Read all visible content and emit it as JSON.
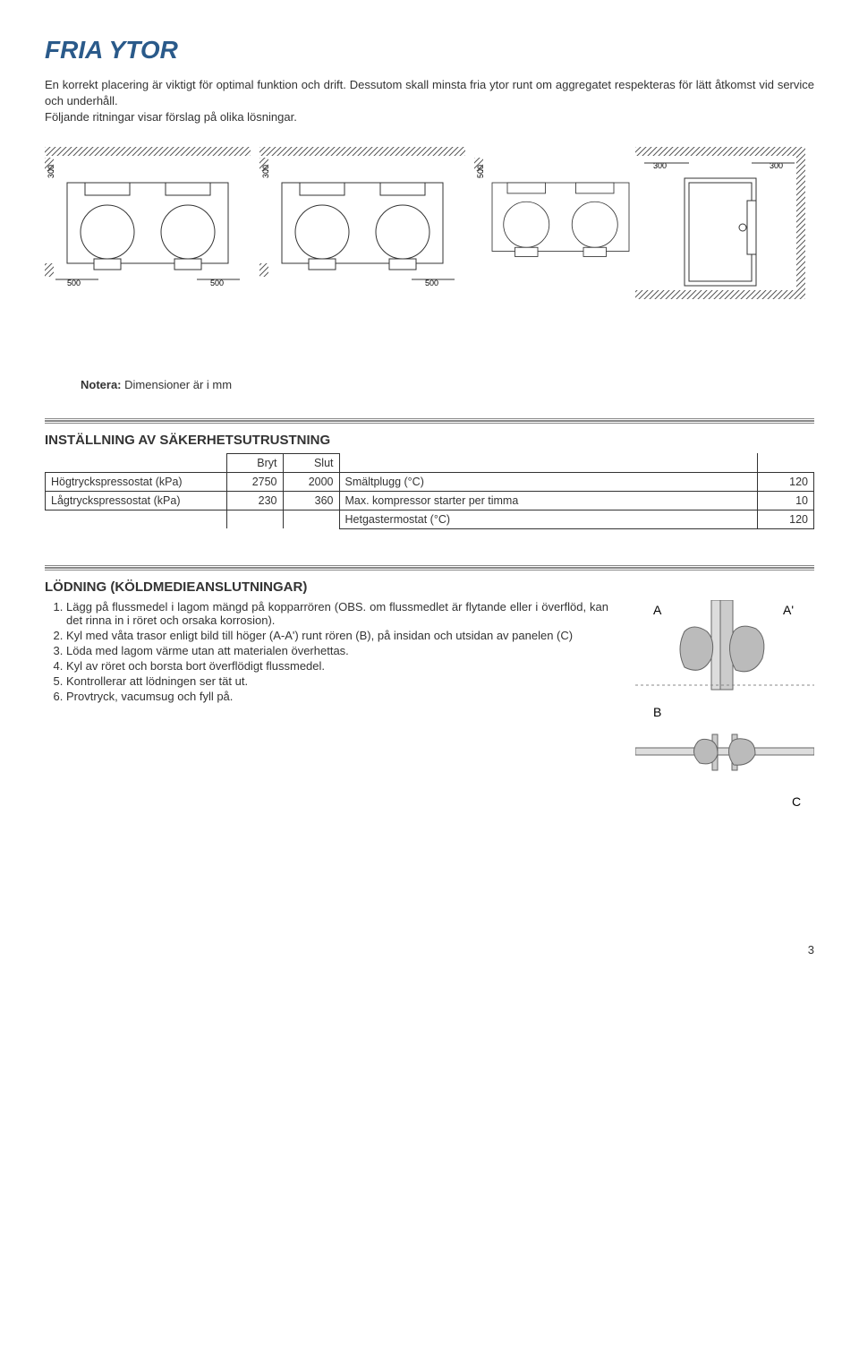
{
  "title": "FRIA YTOR",
  "title_color": "#2a5a8a",
  "intro": "En korrekt placering är viktigt för optimal funktion och drift. Dessutom skall minsta fria ytor runt om aggregatet respekteras för lätt åtkomst vid service och underhåll.\nFöljande ritningar visar förslag på olika lösningar.",
  "note_label": "Notera:",
  "note_text": " Dimensioner är i mm",
  "settings_heading": "INSTÄLLNING AV SÄKERHETSUTRUSTNING",
  "settings_table": {
    "col_bryt": "Bryt",
    "col_slut": "Slut",
    "rows_left": [
      {
        "label": "Högtryckspressostat (kPa)",
        "bryt": "2750",
        "slut": "2000"
      },
      {
        "label": "Lågtryckspressostat (kPa)",
        "bryt": "230",
        "slut": "360"
      }
    ],
    "rows_right": [
      {
        "label": "Smältplugg (°C)",
        "val": "120"
      },
      {
        "label": "Max. kompressor starter per timma",
        "val": "10"
      },
      {
        "label": "Hetgastermostat (°C)",
        "val": "120"
      }
    ]
  },
  "lodning_heading": "LÖDNING (KÖLDMEDIEANSLUTNINGAR)",
  "lodning_items": [
    "Lägg på flussmedel i lagom mängd på kopparrören (OBS. om flussmedlet är flytande eller i överflöd, kan det rinna in i röret och orsaka korrosion).",
    "Kyl med våta trasor enligt bild till höger (A-A') runt rören (B), på insidan och utsidan av panelen (C)",
    "Löda med lagom värme utan att materialen överhettas.",
    "Kyl av röret och borsta bort överflödigt flussmedel.",
    "Kontrollerar att lödningen ser tät ut.",
    "Provtryck, vacumsug och fyll på."
  ],
  "fig_labels": {
    "A": "A",
    "Ap": "A'",
    "B": "B",
    "C": "C"
  },
  "diagram_dims": {
    "d300": "300",
    "d500": "500"
  },
  "page_number": "3"
}
